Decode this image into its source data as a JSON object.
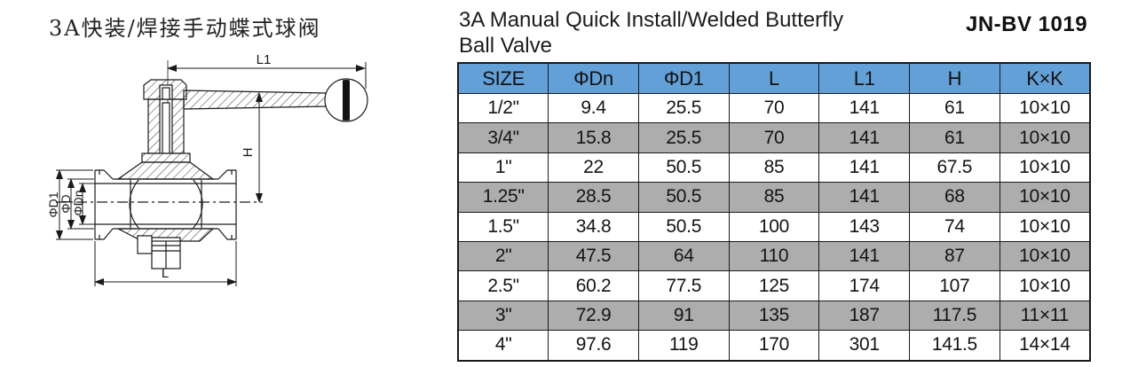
{
  "header": {
    "title_cn": "3A快装/焊接手动蝶式球阀",
    "title_en_line1": "3A Manual Quick Install/Welded Butterfly",
    "title_en_line2": "Ball Valve",
    "model_code": "JN-BV 1019"
  },
  "drawing": {
    "labels": {
      "l1": "L1",
      "h": "H",
      "l": "L",
      "d1": "ΦD1",
      "d": "ΦD",
      "dn": "ΦDn"
    }
  },
  "table": {
    "header_bg": "#64A0D8",
    "row_alt_bg": "#ADADAD",
    "border_color": "#1a1a1a",
    "columns": [
      "SIZE",
      "ΦDn",
      "ΦD1",
      "L",
      "L1",
      "H",
      "K×K"
    ],
    "rows": [
      [
        "1/2\"",
        "9.4",
        "25.5",
        "70",
        "141",
        "61",
        "10×10"
      ],
      [
        "3/4\"",
        "15.8",
        "25.5",
        "70",
        "141",
        "61",
        "10×10"
      ],
      [
        "1\"",
        "22",
        "50.5",
        "85",
        "141",
        "67.5",
        "10×10"
      ],
      [
        "1.25\"",
        "28.5",
        "50.5",
        "85",
        "141",
        "68",
        "10×10"
      ],
      [
        "1.5\"",
        "34.8",
        "50.5",
        "100",
        "143",
        "74",
        "10×10"
      ],
      [
        "2\"",
        "47.5",
        "64",
        "110",
        "141",
        "87",
        "10×10"
      ],
      [
        "2.5\"",
        "60.2",
        "77.5",
        "125",
        "174",
        "107",
        "10×10"
      ],
      [
        "3\"",
        "72.9",
        "91",
        "135",
        "187",
        "117.5",
        "11×11"
      ],
      [
        "4\"",
        "97.6",
        "119",
        "170",
        "301",
        "141.5",
        "14×14"
      ]
    ]
  }
}
